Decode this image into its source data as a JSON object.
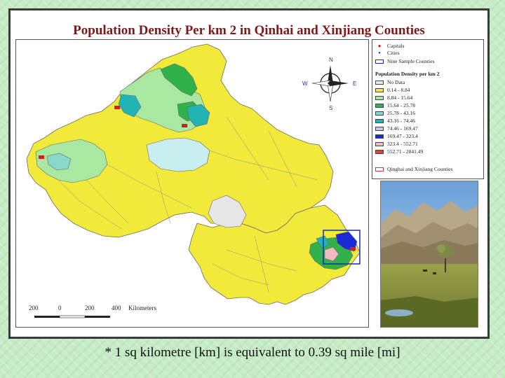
{
  "title": "Population Density Per km 2 in Qinhai and Xinjiang Counties",
  "caption": "* 1  sq kilometre [km] is equivalent to 0.39 sq mile [mi]",
  "compass": {
    "n": "N",
    "s": "S",
    "e": "E",
    "w": "W"
  },
  "scale_bar": {
    "ticks": [
      "200",
      "0",
      "200",
      "400"
    ],
    "unit": "Kilometers"
  },
  "legend": {
    "symbols": [
      {
        "label": "Capitals",
        "color": "#cc2222"
      },
      {
        "label": "Cities",
        "color": "#2233aa"
      },
      {
        "label": "Nine Sample Counties",
        "color": "#1a2aaa"
      }
    ],
    "density_title": "Population Density per km 2",
    "classes": [
      {
        "label": "No Data",
        "color": "#e6e6e6"
      },
      {
        "label": "0.14 - 8.84",
        "color": "#f2ea3a"
      },
      {
        "label": "8.84 - 15.64",
        "color": "#a8e8a0"
      },
      {
        "label": "15.64 - 25.78",
        "color": "#2fb24a"
      },
      {
        "label": "25.78 - 43.16",
        "color": "#88d8c8"
      },
      {
        "label": "43.16 - 74.46",
        "color": "#22b4b4"
      },
      {
        "label": "74.46 - 169.47",
        "color": "#c8c8ee"
      },
      {
        "label": "169.47 - 323.4",
        "color": "#1a2ad8"
      },
      {
        "label": "323.4 - 552.71",
        "color": "#f4b8c0"
      },
      {
        "label": "552.71 - 2841.49",
        "color": "#e8402e"
      }
    ],
    "outline_label": "Qinghai and Xinjiang Counties",
    "outline_color": "#c83c3c"
  },
  "photo": {
    "description": "mountain-landscape-photo"
  }
}
